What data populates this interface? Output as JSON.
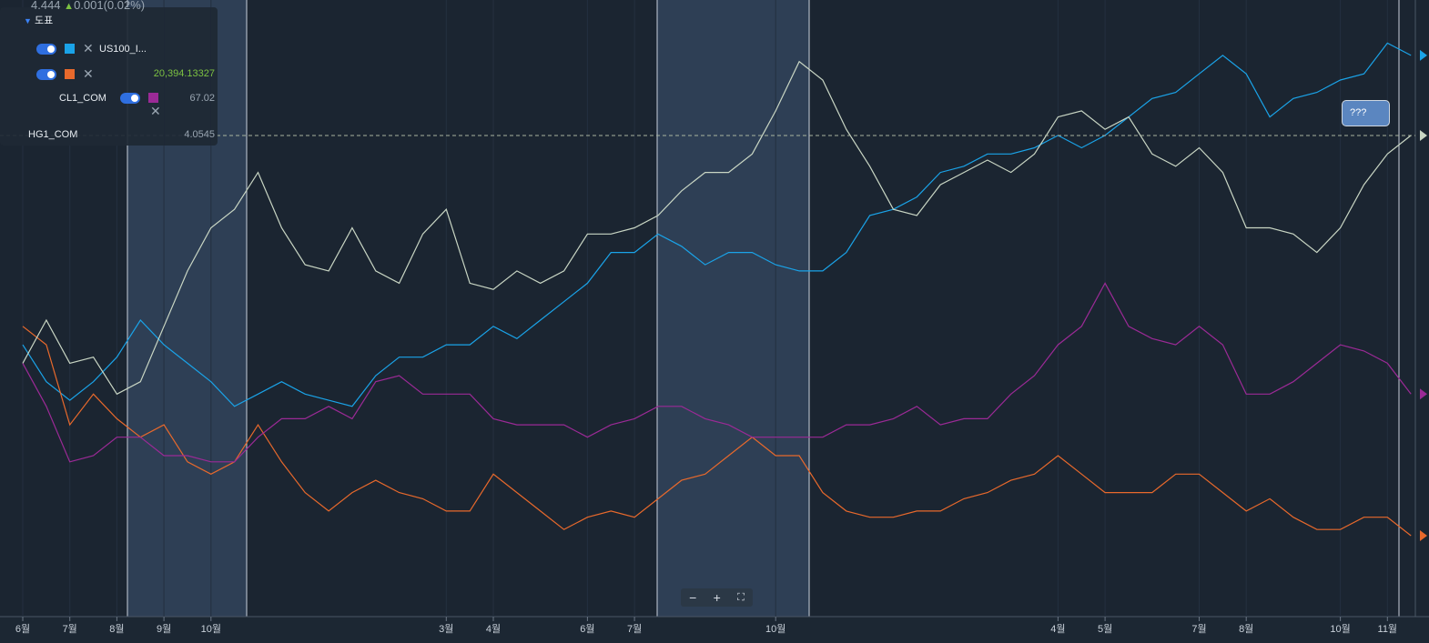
{
  "header": {
    "price": "4.444",
    "change": "0.001(0.02%)"
  },
  "legend": {
    "title": "도표",
    "rows": [
      {
        "value": "20,394.13327"
      },
      {
        "value": "67.02"
      },
      {
        "value": "4.0545"
      }
    ]
  },
  "callout": {
    "text": "???"
  },
  "chart_data": {
    "type": "line",
    "categories": [
      "6월",
      null,
      "7월",
      null,
      "8월",
      null,
      "9월",
      null,
      "10월",
      null,
      null,
      null,
      null,
      null,
      null,
      null,
      null,
      null,
      "3월",
      null,
      "4월",
      null,
      null,
      null,
      "6월",
      null,
      "7월",
      null,
      null,
      null,
      null,
      null,
      "10월",
      null,
      null,
      null,
      null,
      null,
      null,
      null,
      null,
      null,
      null,
      null,
      "4월",
      null,
      "5월",
      null,
      null,
      null,
      "7월",
      null,
      "8월",
      null,
      null,
      null,
      "10월",
      null,
      "11월",
      null
    ],
    "ylim": [
      0,
      100
    ],
    "series": [
      {
        "name": "US100_I...",
        "color": "#1aa3e8",
        "values": [
          44,
          38,
          35,
          38,
          42,
          48,
          44,
          41,
          38,
          34,
          36,
          38,
          36,
          35,
          34,
          39,
          42,
          42,
          44,
          44,
          47,
          45,
          48,
          51,
          54,
          59,
          59,
          62,
          60,
          57,
          59,
          59,
          57,
          56,
          56,
          59,
          65,
          66,
          68,
          72,
          73,
          75,
          75,
          76,
          78,
          76,
          78,
          81,
          84,
          85,
          88,
          91,
          88,
          81,
          84,
          85,
          87,
          88,
          93,
          91
        ]
      },
      {
        "color": "#e8692c",
        "values": [
          47,
          44,
          31,
          36,
          32,
          29,
          31,
          25,
          23,
          25,
          31,
          25,
          20,
          17,
          20,
          22,
          20,
          19,
          17,
          17,
          23,
          20,
          17,
          14,
          16,
          17,
          16,
          19,
          22,
          23,
          26,
          29,
          26,
          26,
          20,
          17,
          16,
          16,
          17,
          17,
          19,
          20,
          22,
          23,
          26,
          23,
          20,
          20,
          20,
          23,
          23,
          20,
          17,
          19,
          16,
          14,
          14,
          16,
          16,
          13
        ]
      },
      {
        "name": "CL1_COM",
        "color": "#9b2a96",
        "values": [
          41,
          34,
          25,
          26,
          29,
          29,
          26,
          26,
          25,
          25,
          29,
          32,
          32,
          34,
          32,
          38,
          39,
          36,
          36,
          36,
          32,
          31,
          31,
          31,
          29,
          31,
          32,
          34,
          34,
          32,
          31,
          29,
          29,
          29,
          29,
          31,
          31,
          32,
          34,
          31,
          32,
          32,
          36,
          39,
          44,
          47,
          54,
          47,
          45,
          44,
          47,
          44,
          36,
          36,
          38,
          41,
          44,
          43,
          41,
          36
        ]
      },
      {
        "name": "HG1_COM",
        "color": "#c9d6c4",
        "values": [
          41,
          48,
          41,
          42,
          36,
          38,
          47,
          56,
          63,
          66,
          72,
          63,
          57,
          56,
          63,
          56,
          54,
          62,
          66,
          54,
          53,
          56,
          54,
          56,
          62,
          62,
          63,
          65,
          69,
          72,
          72,
          75,
          82,
          90,
          87,
          79,
          73,
          66,
          65,
          70,
          72,
          74,
          72,
          75,
          81,
          82,
          79,
          81,
          75,
          73,
          76,
          72,
          63,
          63,
          62,
          59,
          63,
          70,
          75,
          78
        ]
      }
    ]
  }
}
